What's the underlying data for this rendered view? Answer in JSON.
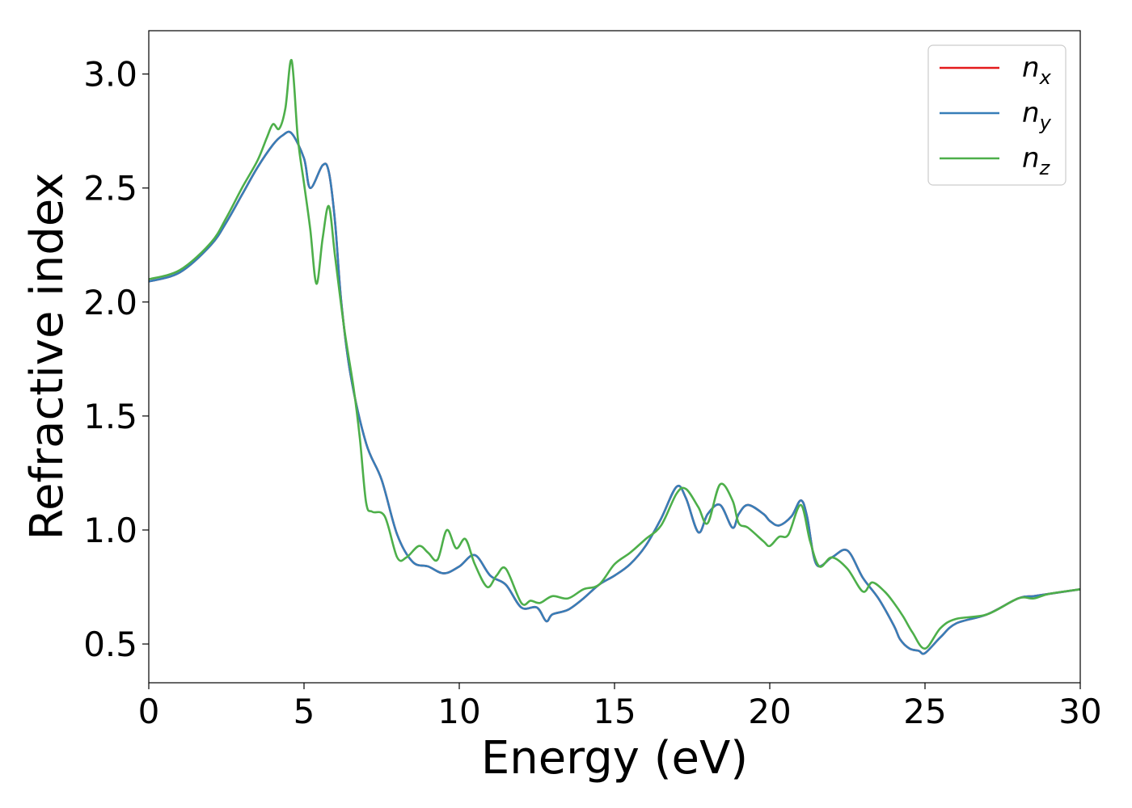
{
  "chart_data": {
    "type": "line",
    "xlabel": "Energy (eV)",
    "ylabel": "Refractive index",
    "xlim": [
      0,
      30
    ],
    "ylim": [
      0.33,
      3.19
    ],
    "xticks": [
      0,
      5,
      10,
      15,
      20,
      25,
      30
    ],
    "xtick_labels": [
      "0",
      "5",
      "10",
      "15",
      "20",
      "25",
      "30"
    ],
    "yticks": [
      0.5,
      1.0,
      1.5,
      2.0,
      2.5,
      3.0
    ],
    "ytick_labels": [
      "0.5",
      "1.0",
      "1.5",
      "2.0",
      "2.5",
      "3.0"
    ],
    "grid": false,
    "legend": "top-right",
    "series": [
      {
        "name": "n",
        "subscript": "x",
        "color": "#e41a1c",
        "x": [
          0,
          1,
          2,
          2.5,
          3,
          3.5,
          4,
          4.3,
          4.6,
          5,
          5.2,
          5.6,
          5.8,
          6,
          6.2,
          6.5,
          7,
          7.5,
          8,
          8.5,
          9,
          9.5,
          10,
          10.5,
          11,
          11.5,
          12,
          12.5,
          12.8,
          13,
          13.5,
          14,
          14.5,
          15,
          15.5,
          16,
          16.5,
          17,
          17.3,
          17.7,
          18,
          18.4,
          18.8,
          19,
          19.3,
          19.8,
          20,
          20.3,
          20.7,
          21,
          21.2,
          21.5,
          22,
          22.5,
          23,
          23.5,
          24,
          24.2,
          24.5,
          24.8,
          25,
          25.5,
          26,
          27,
          28,
          28.5,
          29,
          30
        ],
        "y": [
          2.09,
          2.13,
          2.25,
          2.35,
          2.47,
          2.59,
          2.69,
          2.73,
          2.74,
          2.63,
          2.5,
          2.6,
          2.57,
          2.35,
          2.0,
          1.68,
          1.38,
          1.22,
          0.98,
          0.86,
          0.84,
          0.81,
          0.84,
          0.89,
          0.8,
          0.76,
          0.66,
          0.66,
          0.6,
          0.63,
          0.65,
          0.7,
          0.76,
          0.8,
          0.85,
          0.93,
          1.05,
          1.19,
          1.14,
          0.99,
          1.07,
          1.11,
          1.01,
          1.07,
          1.11,
          1.07,
          1.04,
          1.02,
          1.06,
          1.13,
          1.06,
          0.85,
          0.88,
          0.91,
          0.79,
          0.7,
          0.58,
          0.52,
          0.48,
          0.47,
          0.46,
          0.53,
          0.59,
          0.63,
          0.7,
          0.71,
          0.72,
          0.74
        ]
      },
      {
        "name": "n",
        "subscript": "y",
        "color": "#377eb8",
        "x": [
          0,
          1,
          2,
          2.5,
          3,
          3.5,
          4,
          4.3,
          4.6,
          5,
          5.2,
          5.6,
          5.8,
          6,
          6.2,
          6.5,
          7,
          7.5,
          8,
          8.5,
          9,
          9.5,
          10,
          10.5,
          11,
          11.5,
          12,
          12.5,
          12.8,
          13,
          13.5,
          14,
          14.5,
          15,
          15.5,
          16,
          16.5,
          17,
          17.3,
          17.7,
          18,
          18.4,
          18.8,
          19,
          19.3,
          19.8,
          20,
          20.3,
          20.7,
          21,
          21.2,
          21.5,
          22,
          22.5,
          23,
          23.5,
          24,
          24.2,
          24.5,
          24.8,
          25,
          25.5,
          26,
          27,
          28,
          28.5,
          29,
          30
        ],
        "y": [
          2.09,
          2.13,
          2.25,
          2.35,
          2.47,
          2.59,
          2.69,
          2.73,
          2.74,
          2.63,
          2.5,
          2.6,
          2.57,
          2.35,
          2.0,
          1.68,
          1.38,
          1.22,
          0.98,
          0.86,
          0.84,
          0.81,
          0.84,
          0.89,
          0.8,
          0.76,
          0.66,
          0.66,
          0.6,
          0.63,
          0.65,
          0.7,
          0.76,
          0.8,
          0.85,
          0.93,
          1.05,
          1.19,
          1.14,
          0.99,
          1.07,
          1.11,
          1.01,
          1.07,
          1.11,
          1.07,
          1.04,
          1.02,
          1.06,
          1.13,
          1.06,
          0.85,
          0.88,
          0.91,
          0.79,
          0.7,
          0.58,
          0.52,
          0.48,
          0.47,
          0.46,
          0.53,
          0.59,
          0.63,
          0.7,
          0.71,
          0.72,
          0.74
        ]
      },
      {
        "name": "n",
        "subscript": "z",
        "color": "#4daf4a",
        "x": [
          0,
          1,
          2,
          2.5,
          3,
          3.5,
          3.8,
          4,
          4.2,
          4.4,
          4.6,
          4.8,
          5,
          5.2,
          5.4,
          5.6,
          5.8,
          6,
          6.3,
          6.6,
          6.8,
          7,
          7.2,
          7.6,
          8,
          8.3,
          8.7,
          9,
          9.3,
          9.6,
          9.9,
          10.2,
          10.5,
          10.9,
          11.2,
          11.5,
          12,
          12.3,
          12.6,
          13,
          13.5,
          14,
          14.5,
          15,
          15.5,
          16,
          16.5,
          17,
          17.3,
          17.7,
          18,
          18.4,
          18.8,
          19,
          19.3,
          19.8,
          20,
          20.3,
          20.6,
          21,
          21.3,
          21.6,
          22,
          22.5,
          23,
          23.3,
          23.7,
          24,
          24.3,
          24.6,
          25,
          25.5,
          26,
          27,
          28,
          28.5,
          29,
          30
        ],
        "y": [
          2.1,
          2.14,
          2.26,
          2.37,
          2.5,
          2.62,
          2.72,
          2.78,
          2.76,
          2.85,
          3.06,
          2.72,
          2.52,
          2.32,
          2.08,
          2.28,
          2.42,
          2.2,
          1.88,
          1.62,
          1.4,
          1.12,
          1.08,
          1.06,
          0.88,
          0.88,
          0.93,
          0.9,
          0.87,
          1.0,
          0.92,
          0.96,
          0.85,
          0.75,
          0.8,
          0.83,
          0.68,
          0.69,
          0.68,
          0.71,
          0.7,
          0.74,
          0.76,
          0.85,
          0.9,
          0.96,
          1.02,
          1.16,
          1.18,
          1.1,
          1.03,
          1.2,
          1.13,
          1.03,
          1.01,
          0.95,
          0.93,
          0.97,
          0.98,
          1.11,
          0.95,
          0.84,
          0.88,
          0.83,
          0.73,
          0.77,
          0.73,
          0.68,
          0.62,
          0.55,
          0.48,
          0.57,
          0.61,
          0.63,
          0.7,
          0.7,
          0.72,
          0.74
        ]
      }
    ]
  }
}
